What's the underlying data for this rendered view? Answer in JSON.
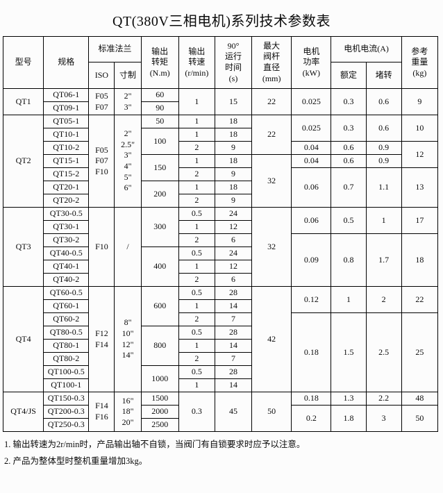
{
  "title": "QT(380V三相电机)系列技术参数表",
  "table": {
    "header": {
      "model": "型号",
      "spec": "规格",
      "flange": "标准法兰",
      "iso": "ISO",
      "inch": "寸制",
      "torque": "输出\n转矩\n(N.m)",
      "speed": "输出\n转速\n(r/min)",
      "time": "90°\n运行\n时间\n(s)",
      "stem": "最大\n阀杆\n直径\n(mm)",
      "power": "电机\n功率\n(kW)",
      "current": "电机电流(A)",
      "rated": "额定",
      "stall": "堵转",
      "weight": "参考\n重量\n(kg)"
    },
    "rows": [
      [
        {
          "t": "QT1",
          "rs": 2
        },
        {
          "t": "QT06-1",
          "cls": "left"
        },
        {
          "t": "F05\nF07",
          "rs": 2
        },
        {
          "t": "2\"\n3\"",
          "rs": 2
        },
        {
          "t": "60"
        },
        {
          "t": "1",
          "rs": 2
        },
        {
          "t": "15",
          "rs": 2
        },
        {
          "t": "22",
          "rs": 2
        },
        {
          "t": "0.025",
          "rs": 2
        },
        {
          "t": "0.3",
          "rs": 2
        },
        {
          "t": "0.6",
          "rs": 2
        },
        {
          "t": "9",
          "rs": 2
        }
      ],
      [
        {
          "t": "QT09-1",
          "cls": "left"
        },
        {
          "t": "90"
        }
      ],
      [
        {
          "t": "QT2",
          "rs": 7
        },
        {
          "t": "QT05-1",
          "cls": "left"
        },
        {
          "t": "F05\nF07\nF10",
          "rs": 7
        },
        {
          "t": "2\"\n2.5\"\n3\"\n4\"\n5\"\n6\"",
          "rs": 7
        },
        {
          "t": "50"
        },
        {
          "t": "1"
        },
        {
          "t": "18"
        },
        {
          "t": "22",
          "rs": 3
        },
        {
          "t": "0.025",
          "rs": 2
        },
        {
          "t": "0.3",
          "rs": 2
        },
        {
          "t": "0.6",
          "rs": 2
        },
        {
          "t": "10",
          "rs": 2
        }
      ],
      [
        {
          "t": "QT10-1",
          "cls": "left"
        },
        {
          "t": "100",
          "rs": 2
        },
        {
          "t": "1"
        },
        {
          "t": "18"
        }
      ],
      [
        {
          "t": "QT10-2",
          "cls": "left"
        },
        {
          "t": "2"
        },
        {
          "t": "9"
        },
        {
          "t": "0.04"
        },
        {
          "t": "0.6"
        },
        {
          "t": "0.9"
        },
        {
          "t": "12",
          "rs": 2
        }
      ],
      [
        {
          "t": "QT15-1",
          "cls": "left"
        },
        {
          "t": "150",
          "rs": 2
        },
        {
          "t": "1"
        },
        {
          "t": "18"
        },
        {
          "t": "32",
          "rs": 4
        },
        {
          "t": "0.04"
        },
        {
          "t": "0.6"
        },
        {
          "t": "0.9"
        }
      ],
      [
        {
          "t": "QT15-2",
          "cls": "left"
        },
        {
          "t": "2"
        },
        {
          "t": "9"
        },
        {
          "t": "0.06",
          "rs": 3
        },
        {
          "t": "0.7",
          "rs": 3
        },
        {
          "t": "1.1",
          "rs": 3
        },
        {
          "t": "13",
          "rs": 3
        }
      ],
      [
        {
          "t": "QT20-1",
          "cls": "left"
        },
        {
          "t": "200",
          "rs": 2
        },
        {
          "t": "1"
        },
        {
          "t": "18"
        }
      ],
      [
        {
          "t": "QT20-2",
          "cls": "left"
        },
        {
          "t": "2"
        },
        {
          "t": "9"
        }
      ],
      [
        {
          "t": "QT3",
          "rs": 6
        },
        {
          "t": "QT30-0.5",
          "cls": "left"
        },
        {
          "t": "F10",
          "rs": 6
        },
        {
          "t": "/",
          "rs": 6,
          "cls": "slash"
        },
        {
          "t": "300",
          "rs": 3
        },
        {
          "t": "0.5"
        },
        {
          "t": "24"
        },
        {
          "t": "32",
          "rs": 6
        },
        {
          "t": "0.06",
          "rs": 2
        },
        {
          "t": "0.5",
          "rs": 2
        },
        {
          "t": "1",
          "rs": 2
        },
        {
          "t": "17",
          "rs": 2
        }
      ],
      [
        {
          "t": "QT30-1",
          "cls": "left"
        },
        {
          "t": "1"
        },
        {
          "t": "12"
        }
      ],
      [
        {
          "t": "QT30-2",
          "cls": "left"
        },
        {
          "t": "2"
        },
        {
          "t": "6"
        },
        {
          "t": "0.09",
          "rs": 4
        },
        {
          "t": "0.8",
          "rs": 4
        },
        {
          "t": "1.7",
          "rs": 4
        },
        {
          "t": "18",
          "rs": 4
        }
      ],
      [
        {
          "t": "QT40-0.5",
          "cls": "left"
        },
        {
          "t": "400",
          "rs": 3
        },
        {
          "t": "0.5"
        },
        {
          "t": "24"
        }
      ],
      [
        {
          "t": "QT40-1",
          "cls": "left"
        },
        {
          "t": "1"
        },
        {
          "t": "12"
        }
      ],
      [
        {
          "t": "QT40-2",
          "cls": "left"
        },
        {
          "t": "2"
        },
        {
          "t": "6"
        }
      ],
      [
        {
          "t": "QT4",
          "rs": 8
        },
        {
          "t": "QT60-0.5",
          "cls": "left"
        },
        {
          "t": "F12\nF14",
          "rs": 8
        },
        {
          "t": "8\"\n10\"\n12\"\n14\"",
          "rs": 8
        },
        {
          "t": "600",
          "rs": 3
        },
        {
          "t": "0.5"
        },
        {
          "t": "28"
        },
        {
          "t": "42",
          "rs": 8
        },
        {
          "t": "0.12",
          "rs": 2
        },
        {
          "t": "1",
          "rs": 2
        },
        {
          "t": "2",
          "rs": 2
        },
        {
          "t": "22",
          "rs": 2
        }
      ],
      [
        {
          "t": "QT60-1",
          "cls": "left"
        },
        {
          "t": "1"
        },
        {
          "t": "14"
        }
      ],
      [
        {
          "t": "QT60-2",
          "cls": "left"
        },
        {
          "t": "2"
        },
        {
          "t": "7"
        },
        {
          "t": "0.18",
          "rs": 6
        },
        {
          "t": "1.5",
          "rs": 6
        },
        {
          "t": "2.5",
          "rs": 6
        },
        {
          "t": "25",
          "rs": 6
        }
      ],
      [
        {
          "t": "QT80-0.5",
          "cls": "left"
        },
        {
          "t": "800",
          "rs": 3
        },
        {
          "t": "0.5"
        },
        {
          "t": "28"
        }
      ],
      [
        {
          "t": "QT80-1",
          "cls": "left"
        },
        {
          "t": "1"
        },
        {
          "t": "14"
        }
      ],
      [
        {
          "t": "QT80-2",
          "cls": "left"
        },
        {
          "t": "2"
        },
        {
          "t": "7"
        }
      ],
      [
        {
          "t": "QT100-0.5",
          "cls": "left"
        },
        {
          "t": "1000",
          "rs": 2
        },
        {
          "t": "0.5"
        },
        {
          "t": "28"
        }
      ],
      [
        {
          "t": "QT100-1",
          "cls": "left"
        },
        {
          "t": "1"
        },
        {
          "t": "14"
        }
      ],
      [
        {
          "t": "QT4/JS",
          "rs": 3
        },
        {
          "t": "QT150-0.3",
          "cls": "left"
        },
        {
          "t": "F14\nF16",
          "rs": 3
        },
        {
          "t": "16\"\n18\"\n20\"",
          "rs": 3
        },
        {
          "t": "1500"
        },
        {
          "t": "0.3",
          "rs": 3
        },
        {
          "t": "45",
          "rs": 3
        },
        {
          "t": "50",
          "rs": 3
        },
        {
          "t": "0.18"
        },
        {
          "t": "1.3"
        },
        {
          "t": "2.2"
        },
        {
          "t": "48"
        }
      ],
      [
        {
          "t": "QT200-0.3",
          "cls": "left"
        },
        {
          "t": "2000"
        },
        {
          "t": "0.2",
          "rs": 2
        },
        {
          "t": "1.8",
          "rs": 2
        },
        {
          "t": "3",
          "rs": 2
        },
        {
          "t": "50",
          "rs": 2
        }
      ],
      [
        {
          "t": "QT250-0.3",
          "cls": "left"
        },
        {
          "t": "2500"
        }
      ]
    ]
  },
  "notes": [
    "1. 输出转速为2r/min时，产品输出轴不自锁，当阀门有自锁要求时应予以注意。",
    "2. 产品为整体型时整机重量增加3kg。"
  ]
}
